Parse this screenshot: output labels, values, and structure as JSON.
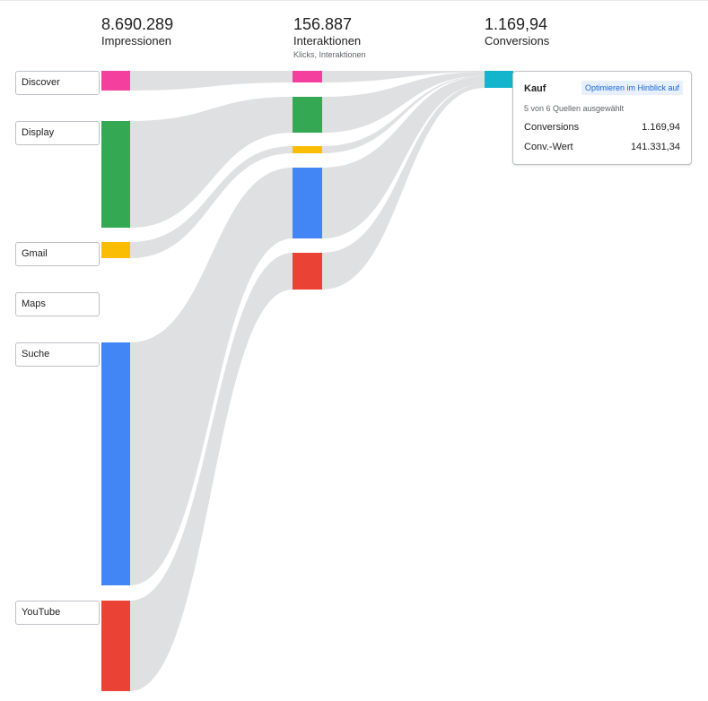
{
  "stages": [
    {
      "value": "8.690.289",
      "label": "Impressionen",
      "sub": ""
    },
    {
      "value": "156.887",
      "label": "Interaktionen",
      "sub": "Klicks, Interaktionen"
    },
    {
      "value": "1.169,94",
      "label": "Conversions",
      "sub": ""
    }
  ],
  "sources": [
    {
      "key": "discover",
      "label": "Discover",
      "color": "#f43f9e"
    },
    {
      "key": "display",
      "label": "Display",
      "color": "#34a853"
    },
    {
      "key": "gmail",
      "label": "Gmail",
      "color": "#fbbc04"
    },
    {
      "key": "maps",
      "label": "Maps",
      "color": "#34a853"
    },
    {
      "key": "suche",
      "label": "Suche",
      "color": "#4285f4"
    },
    {
      "key": "youtube",
      "label": "YouTube",
      "color": "#ea4335"
    }
  ],
  "conversion_color": "#12b5cb",
  "flow_color": "#dfe0e2",
  "tooltip": {
    "title": "Kauf",
    "action": "Optimieren im Hinblick auf",
    "note": "5 von 6 Quellen ausgewählt",
    "rows": [
      {
        "label": "Conversions",
        "value": "1.169,94"
      },
      {
        "label": "Conv.-Wert",
        "value": "141.331,34"
      }
    ]
  }
}
